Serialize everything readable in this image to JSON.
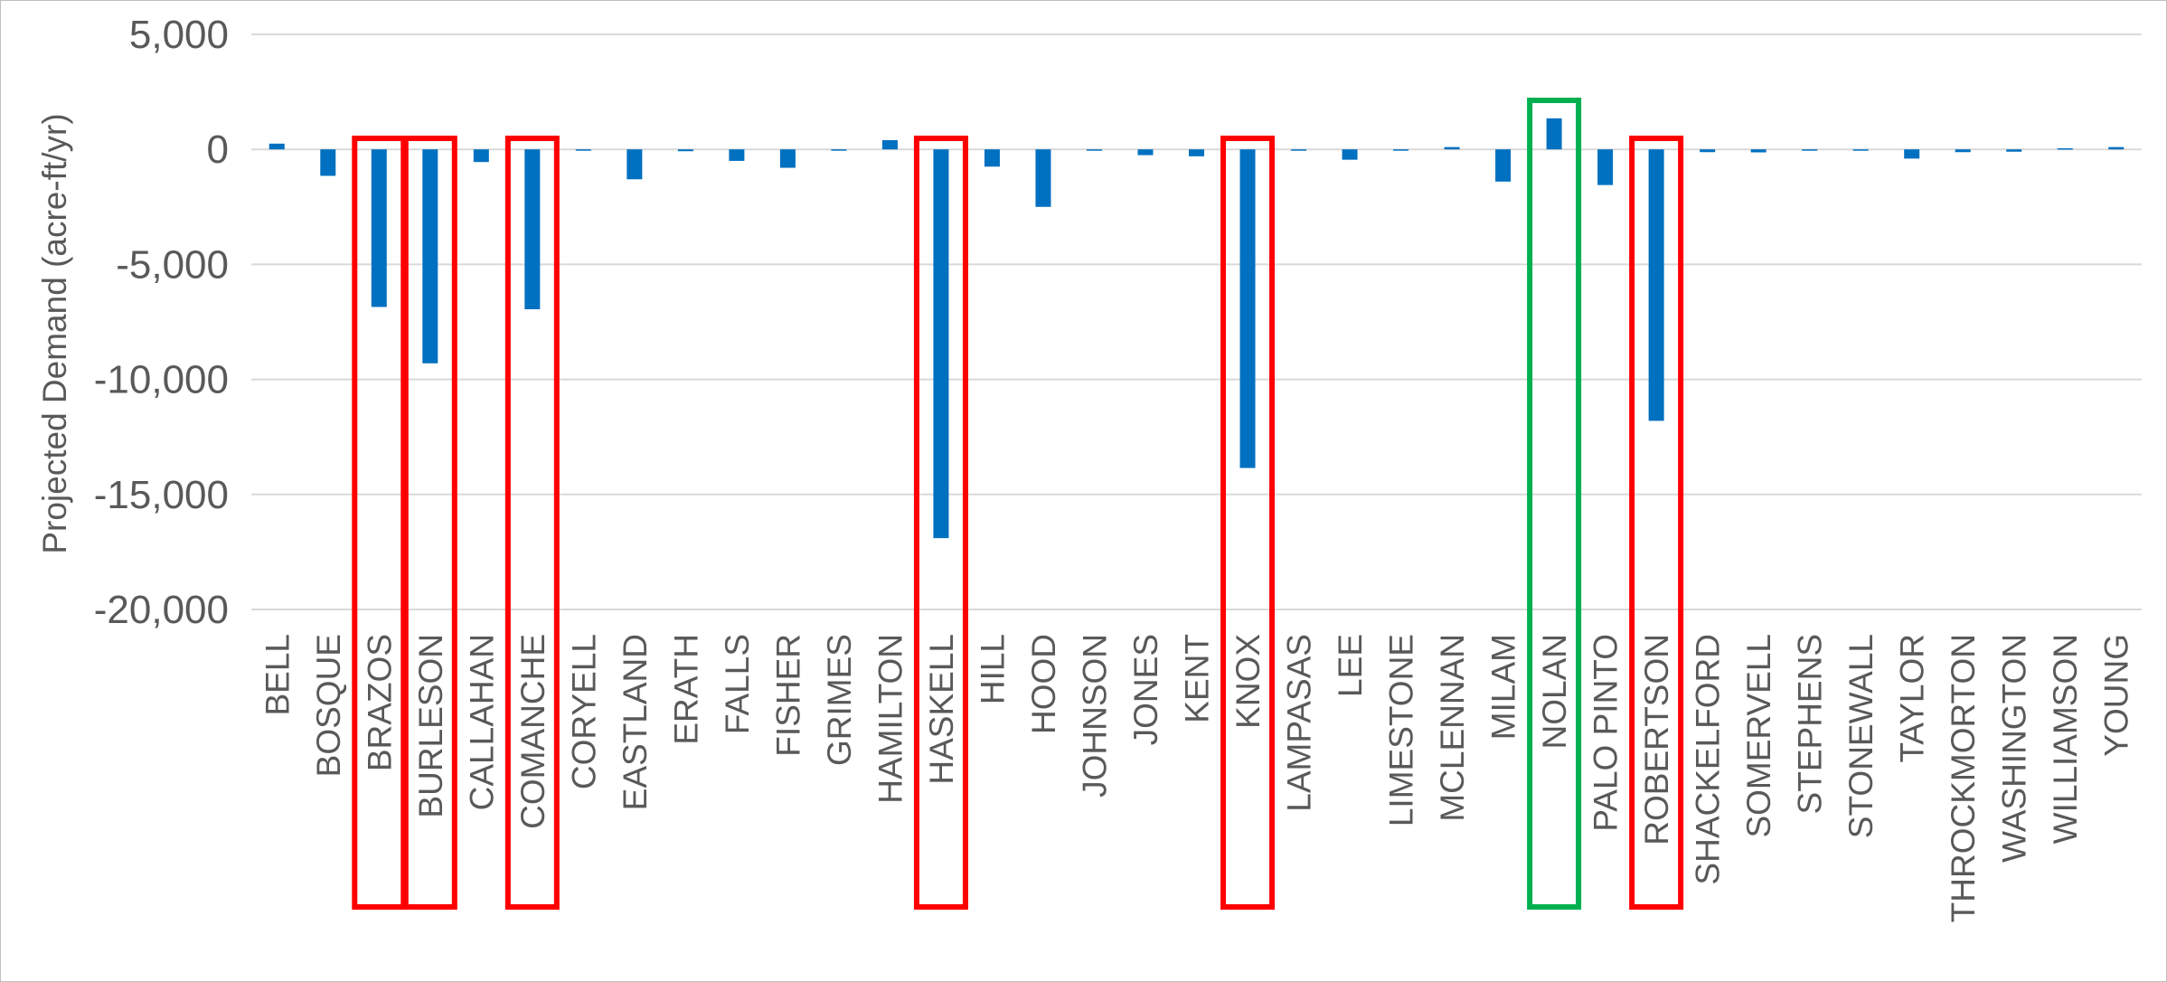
{
  "chart_data": {
    "type": "bar",
    "title": "",
    "xlabel": "",
    "ylabel": "Projected Demand (acre-ft/yr)",
    "ylim": [
      -20000,
      5000
    ],
    "yticks": [
      5000,
      0,
      -5000,
      -10000,
      -15000,
      -20000
    ],
    "ytick_labels": [
      "5,000",
      "0",
      "-5,000",
      "-10,000",
      "-15,000",
      "-20,000"
    ],
    "grid": true,
    "legend": "none",
    "bar_color": "#0070c0",
    "categories": [
      "BELL",
      "BOSQUE",
      "BRAZOS",
      "BURLESON",
      "CALLAHAN",
      "COMANCHE",
      "CORYELL",
      "EASTLAND",
      "ERATH",
      "FALLS",
      "FISHER",
      "GRIMES",
      "HAMILTON",
      "HASKELL",
      "HILL",
      "HOOD",
      "JOHNSON",
      "JONES",
      "KENT",
      "KNOX",
      "LAMPASAS",
      "LEE",
      "LIMESTONE",
      "MCLENNAN",
      "MILAM",
      "NOLAN",
      "PALO PINTO",
      "ROBERTSON",
      "SHACKELFORD",
      "SOMERVELL",
      "STEPHENS",
      "STONEWALL",
      "TAYLOR",
      "THROCKMORTON",
      "WASHINGTON",
      "WILLIAMSON",
      "YOUNG"
    ],
    "values": [
      250,
      -1150,
      -6850,
      -9300,
      -550,
      -6950,
      -30,
      -1300,
      -80,
      -500,
      -800,
      -30,
      400,
      -16900,
      -750,
      -2500,
      -50,
      -250,
      -300,
      -13850,
      -40,
      -450,
      0,
      100,
      -1400,
      1350,
      -1550,
      -11800,
      -120,
      -130,
      -30,
      -40,
      -400,
      -120,
      -100,
      50,
      100
    ],
    "highlights": {
      "red": [
        "BRAZOS",
        "BURLESON",
        "COMANCHE",
        "HASKELL",
        "KNOX",
        "ROBERTSON"
      ],
      "green": [
        "NOLAN"
      ]
    },
    "highlight_colors": {
      "red": "#ff0000",
      "green": "#00b050"
    }
  }
}
